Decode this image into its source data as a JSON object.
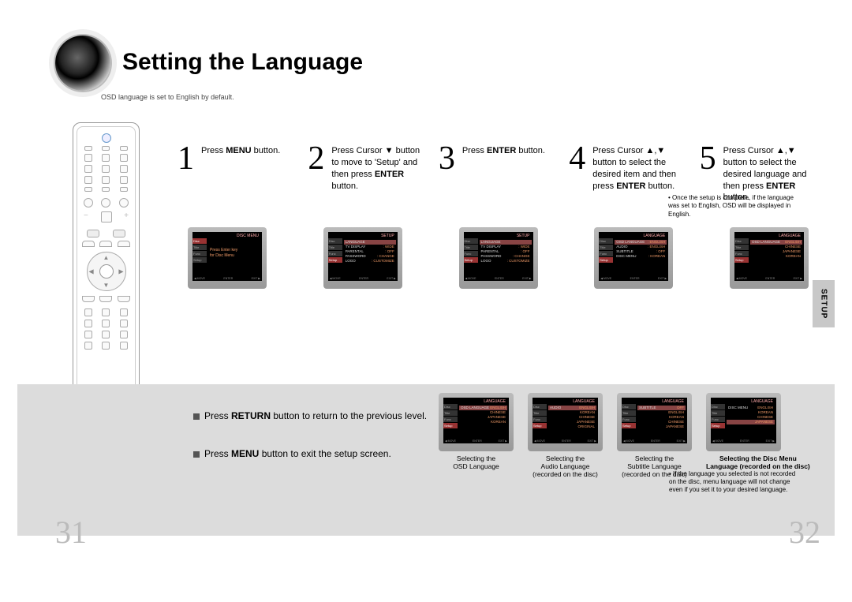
{
  "title": "Setting the Language",
  "subtitle": "OSD language is set to English by default.",
  "steps": [
    {
      "num": "1",
      "html": "Press <b>MENU</b> button."
    },
    {
      "num": "2",
      "html": "Press Cursor ▼ button to move to 'Setup' and then press <b>ENTER</b> button."
    },
    {
      "num": "3",
      "html": "Press <b>ENTER</b> button."
    },
    {
      "num": "4",
      "html": "Press Cursor ▲,▼ button to select the desired item and then press <b>ENTER</b> button."
    },
    {
      "num": "5",
      "html": "Press Cursor ▲,▼ button to select the desired language and then press <b>ENTER</b> button."
    }
  ],
  "footnote_top": "Once the setup is complete, if the language was set to English, OSD will be displayed in English.",
  "screens_top": [
    {
      "title": "DISC MENU",
      "type": "msg",
      "msg": "Press Enter key\nfor Disc Menu",
      "tabs": [
        "Disc",
        "Title",
        "Func",
        "Setup"
      ],
      "active_tab": 0
    },
    {
      "title": "SETUP",
      "type": "list",
      "tabs": [
        "Disc",
        "Title",
        "Func",
        "Setup"
      ],
      "active_tab": 3,
      "lines": [
        [
          "LANGUAGE",
          ""
        ],
        [
          "TV DISPLAY",
          ": WIDE"
        ],
        [
          "PARENTAL",
          ": OFF"
        ],
        [
          "PASSWORD",
          ": CHANGE"
        ],
        [
          "LOGO",
          ": CUSTOMIZE"
        ]
      ],
      "hl": 0
    },
    {
      "title": "SETUP",
      "type": "list",
      "tabs": [
        "Disc",
        "Title",
        "Func",
        "Setup"
      ],
      "active_tab": 3,
      "lines": [
        [
          "LANGUAGE",
          ""
        ],
        [
          "TV DISPLAY",
          ": WIDE"
        ],
        [
          "PARENTAL",
          ": OFF"
        ],
        [
          "PASSWORD",
          ": CHANGE"
        ],
        [
          "LOGO",
          ": CUSTOMIZE"
        ]
      ],
      "hl": 0
    },
    {
      "title": "LANGUAGE",
      "type": "list",
      "tabs": [
        "Disc",
        "Title",
        "Func",
        "Setup"
      ],
      "active_tab": 3,
      "lines": [
        [
          "OSD LANGUAGE",
          ": ENGLISH"
        ],
        [
          "AUDIO",
          ": ENGLISH"
        ],
        [
          "SUBTITLE",
          ": OFF"
        ],
        [
          "DISC MENU",
          ": KOREAN"
        ]
      ],
      "hl": 0
    },
    {
      "title": "LANGUAGE",
      "type": "list",
      "tabs": [
        "Disc",
        "Title",
        "Func",
        "Setup"
      ],
      "active_tab": 3,
      "lines": [
        [
          "OSD LANGUAGE",
          "ENGLISH"
        ],
        [
          "",
          "CHINESE"
        ],
        [
          "",
          "JAPANESE"
        ],
        [
          "",
          "KOREAN"
        ]
      ],
      "hl": 0
    }
  ],
  "notes": [
    "Press <b>RETURN</b> button to return to the previous level.",
    "Press <b>MENU</b> button to exit the setup screen."
  ],
  "screens_bottom": [
    {
      "caption": "Selecting the\nOSD Language",
      "bold": false,
      "title": "LANGUAGE",
      "lines": [
        [
          "OSD LANGUAGE",
          "ENGLISH"
        ],
        [
          "",
          "CHINESE"
        ],
        [
          "",
          "JAPANESE"
        ],
        [
          "",
          "KOREAN"
        ]
      ],
      "hl": 0
    },
    {
      "caption": "Selecting the\nAudio Language\n(recorded on the disc)",
      "bold": false,
      "title": "LANGUAGE",
      "lines": [
        [
          "AUDIO",
          "ENGLISH"
        ],
        [
          "",
          "KOREAN"
        ],
        [
          "",
          "CHINESE"
        ],
        [
          "",
          "JAPANESE"
        ],
        [
          "",
          "ORIGINAL"
        ]
      ],
      "hl": 0
    },
    {
      "caption": "Selecting the\nSubtitle Language\n(recorded on the disc)",
      "bold": false,
      "title": "LANGUAGE",
      "lines": [
        [
          "SUBTITLE",
          "OFF"
        ],
        [
          "",
          "ENGLISH"
        ],
        [
          "",
          "KOREAN"
        ],
        [
          "",
          "CHINESE"
        ],
        [
          "",
          "JAPANESE"
        ]
      ],
      "hl": 0
    },
    {
      "caption": "Selecting the Disc Menu\nLanguage (recorded on the disc)",
      "bold": true,
      "title": "LANGUAGE",
      "lines": [
        [
          "DISC MENU",
          "ENGLISH"
        ],
        [
          "",
          "KOREAN"
        ],
        [
          "",
          "CHINESE"
        ],
        [
          "",
          "JAPANESE"
        ]
      ],
      "hl": 3
    }
  ],
  "footnote_bottom": "If the language you selected is not recorded on the disc, menu language will not change even if you set it to your desired language.",
  "setup_tab": "SETUP",
  "page_left": "31",
  "page_right": "32"
}
